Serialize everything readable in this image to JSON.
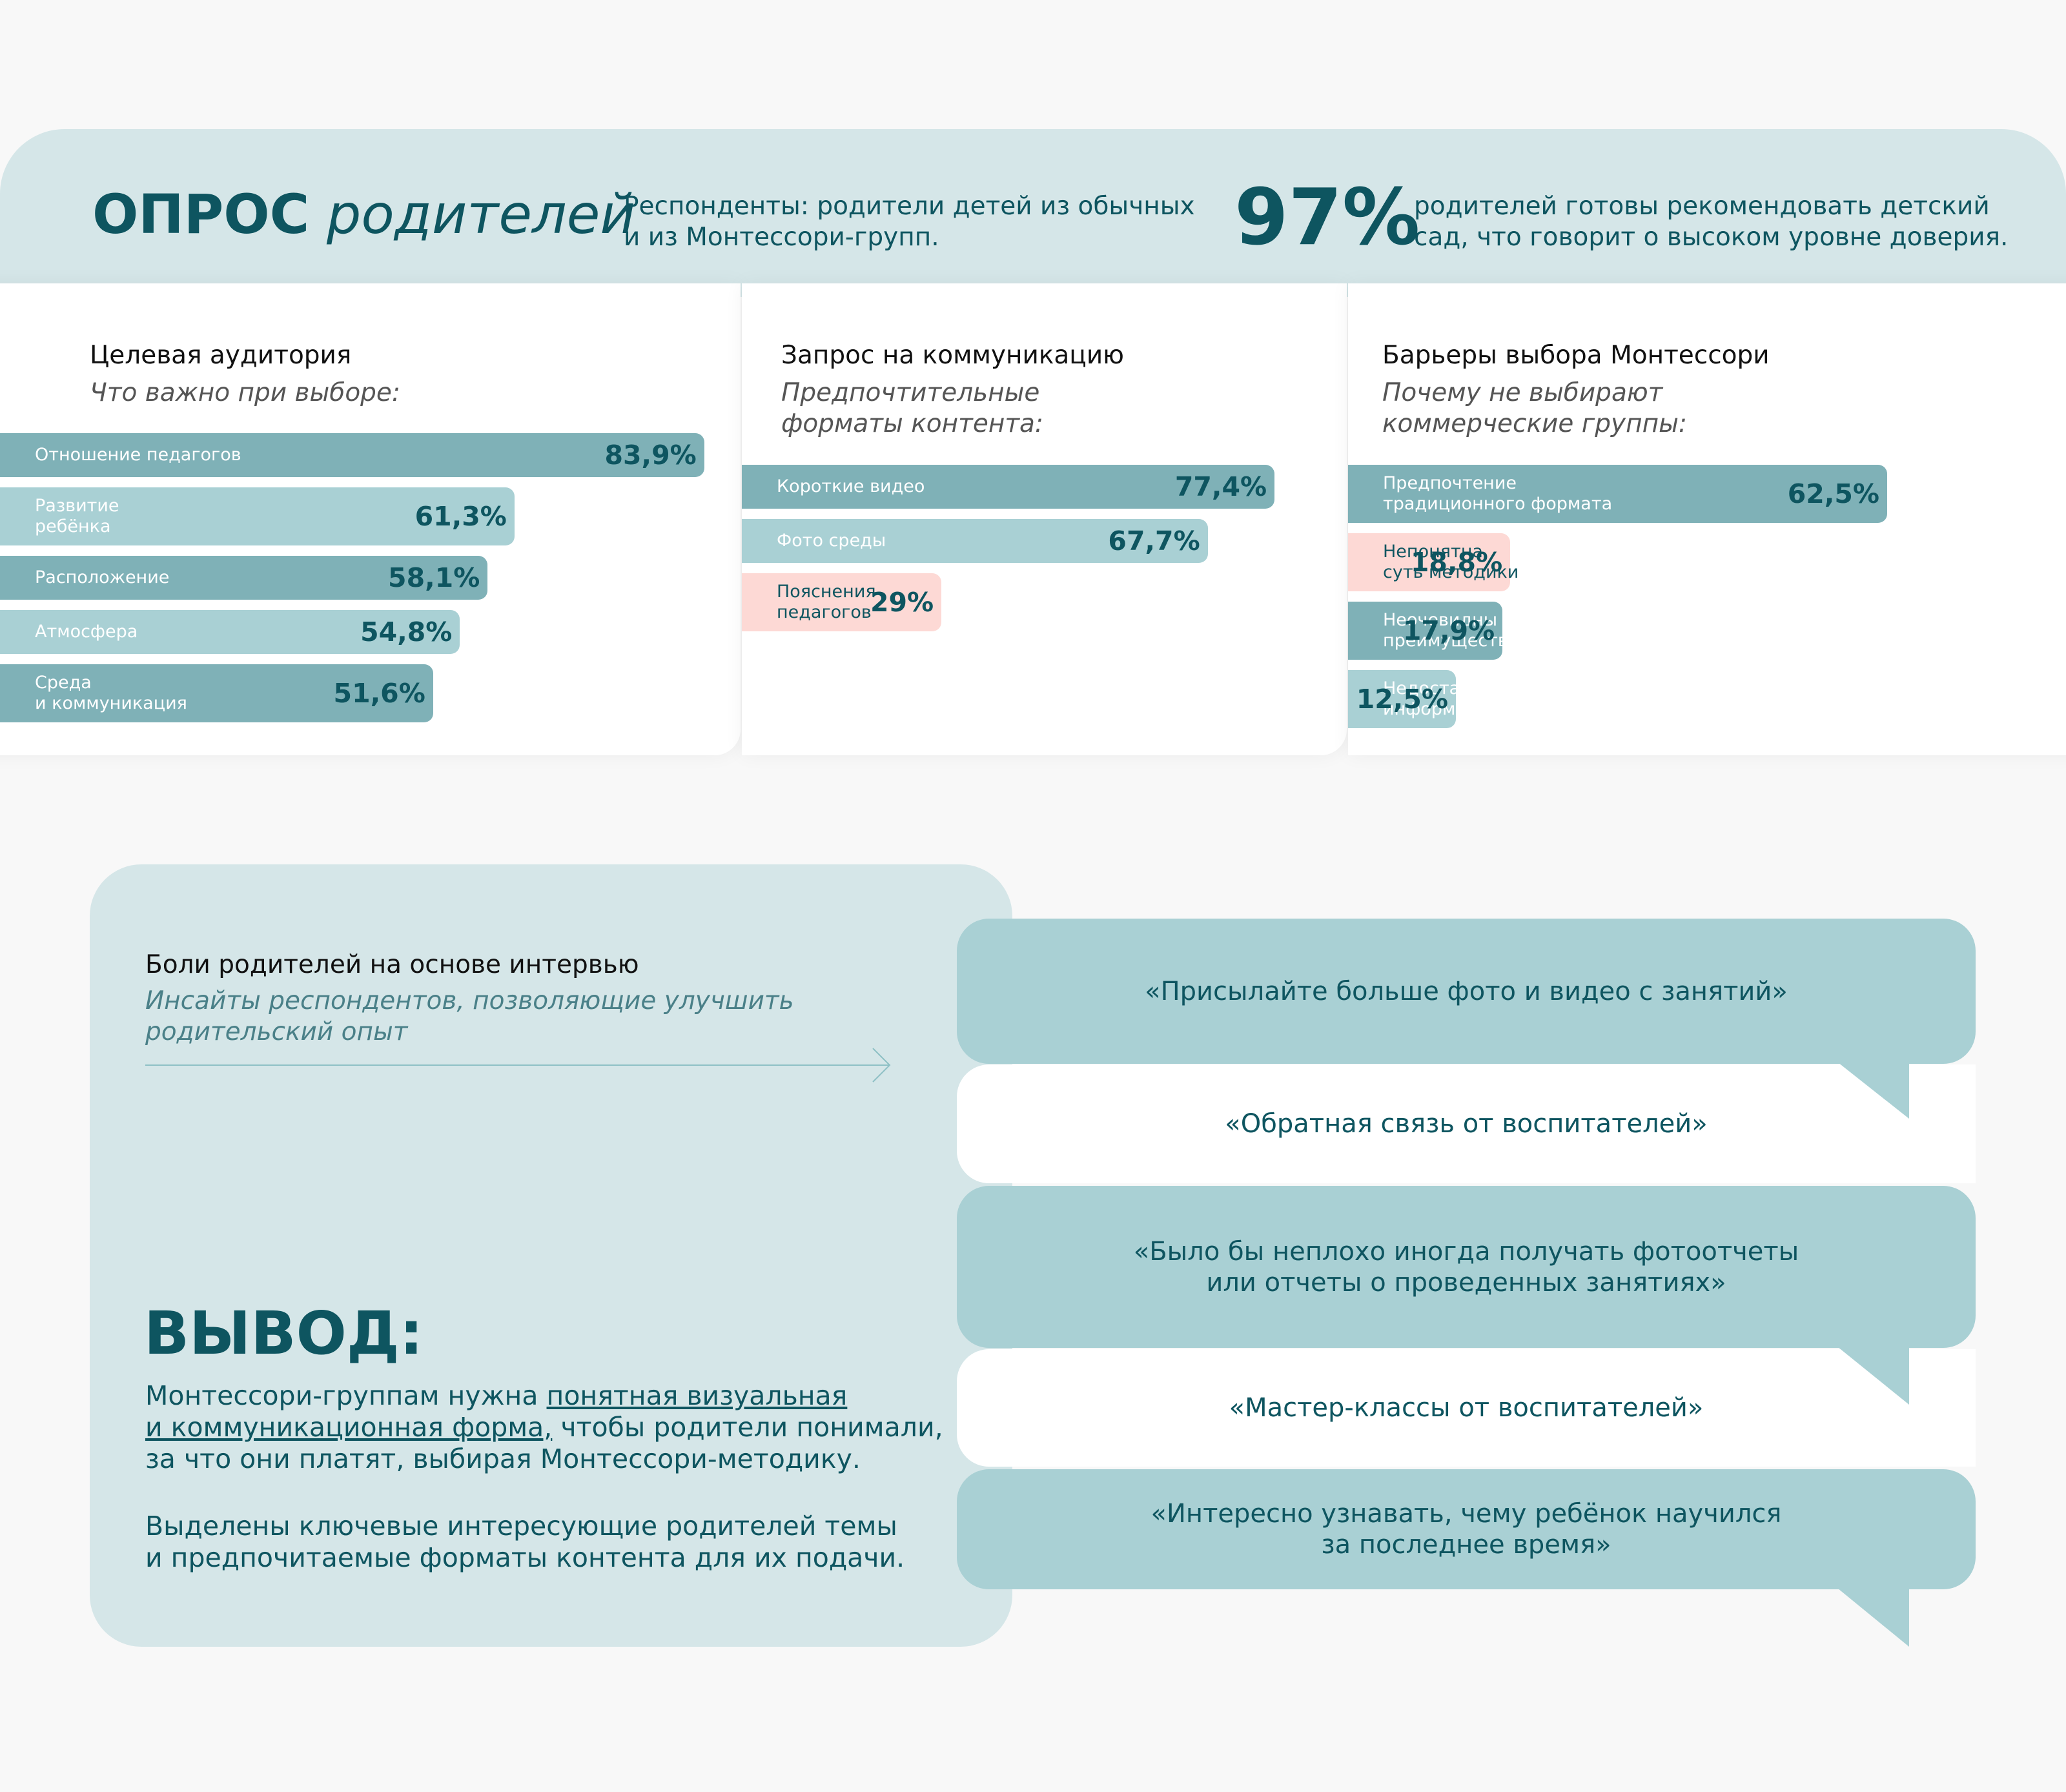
{
  "header": {
    "title_bold": "ОПРОС",
    "title_italic": "родителей",
    "respondents": "Респонденты: родители детей из обычных\nи из Монтессори-групп.",
    "stat": "97%",
    "stat_text": "родителей готовы рекомендовать детский\nсад, что говорит о высоком уровне доверия."
  },
  "chart_data": [
    {
      "type": "bar",
      "title": "Целевая аудитория",
      "subtitle": "Что важно при выборе:",
      "categories": [
        "Отношение педагогов",
        "Развитие\nребёнка",
        "Расположение",
        "Атмосфера",
        "Среда\nи коммуникация"
      ],
      "values": [
        83.9,
        61.3,
        58.1,
        54.8,
        51.6
      ],
      "value_labels": [
        "83,9%",
        "61,3%",
        "58,1%",
        "54,8%",
        "51,6%"
      ],
      "colors": [
        "#7fb1b7",
        "#a9d0d4",
        "#7fb1b7",
        "#a9d0d4",
        "#7fb1b7"
      ]
    },
    {
      "type": "bar",
      "title": "Запрос на коммуникацию",
      "subtitle": "Предпочтительные\nформаты контента:",
      "categories": [
        "Короткие видео",
        "Фото среды",
        "Пояснения\nпедагогов"
      ],
      "values": [
        77.4,
        67.7,
        29
      ],
      "value_labels": [
        "77,4%",
        "67,7%",
        "29%"
      ],
      "colors": [
        "#7fb1b7",
        "#a9d0d4",
        "#fdd9d5"
      ]
    },
    {
      "type": "bar",
      "title": "Барьеры выбора Монтессори",
      "subtitle": "Почему не выбирают\nкоммерческие группы:",
      "categories": [
        "Предпочтение\nтрадиционного формата",
        "Непонятна\nсуть методики",
        "Неочевидны\nпреимущества",
        "Недостаток\nинформации"
      ],
      "values": [
        62.5,
        18.8,
        17.9,
        12.5
      ],
      "value_labels": [
        "62,5%",
        "18,8%",
        "17,9%",
        "12,5%"
      ],
      "colors": [
        "#7fb1b7",
        "#fdd9d5",
        "#7fb1b7",
        "#a9d0d4"
      ]
    }
  ],
  "insights": {
    "title": "Боли родителей на основе интервью",
    "subtitle": "Инсайты респондентов, позволяющие улучшить\nродительский опыт",
    "quotes": [
      "«Присылайте больше фото и видео с занятий»",
      "«Обратная связь от воспитателей»",
      "«Было бы неплохо иногда получать фотоотчеты\nили отчеты о проведенных занятиях»",
      "«Мастер-классы от воспитателей»",
      "«Интересно узнавать, чему ребёнок научился\nза последнее время»"
    ]
  },
  "conclusion": {
    "title": "ВЫВОД:",
    "paragraph_1": {
      "before": "Монтессори-группам нужна ",
      "underlined": "понятная визуальная\nи коммуникационная форма,",
      "after": " чтобы родители понимали,\nза что они платят, выбирая Монтессори-методику."
    },
    "paragraph_2": "Выделены ключевые интересующие родителей темы\nи предпочитаемые форматы контента для их подачи."
  }
}
